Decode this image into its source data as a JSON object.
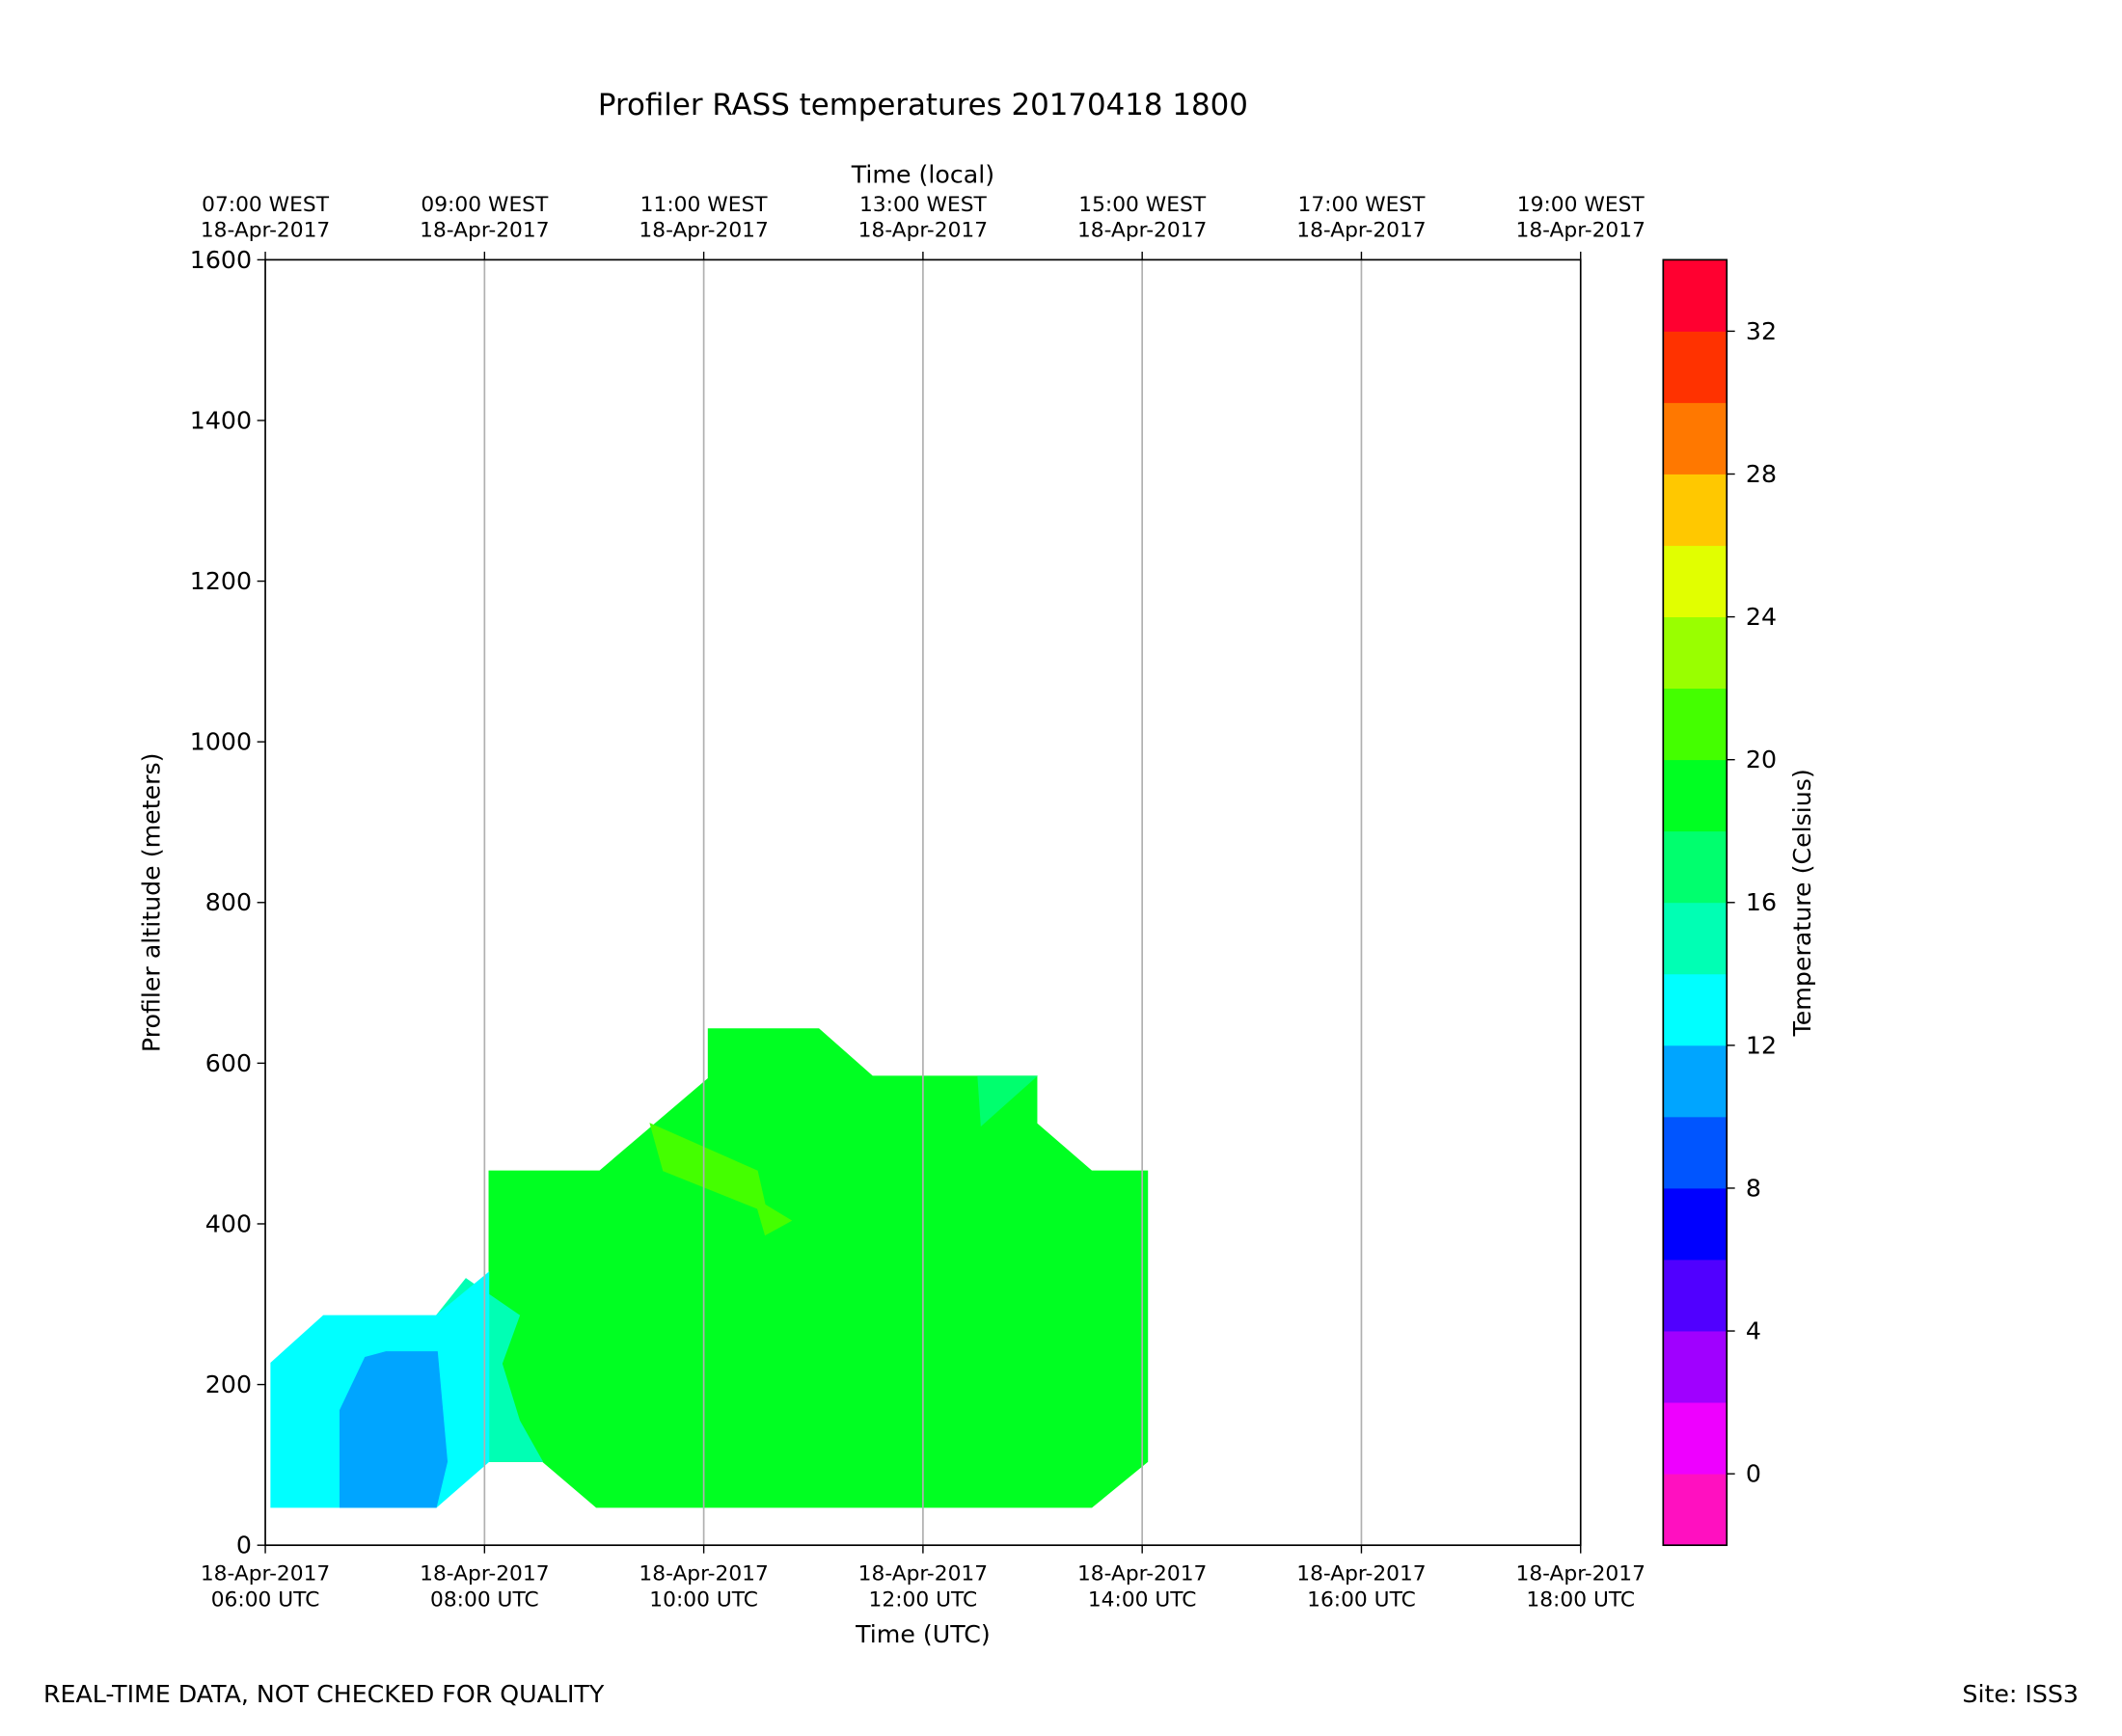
{
  "chart_data": {
    "type": "contourf",
    "title": "Profiler RASS temperatures 20170418 1800",
    "x_label": "Time (UTC)",
    "x2_label": "Time (local)",
    "y_label": "Profiler altitude (meters)",
    "colorbar_label": "Temperature (Celsius)",
    "footer_left": "REAL-TIME DATA, NOT CHECKED FOR QUALITY",
    "footer_right": "Site: ISS3",
    "xlim": [
      6,
      18
    ],
    "ylim": [
      0,
      1600
    ],
    "yticks": [
      0,
      200,
      400,
      600,
      800,
      1000,
      1200,
      1400,
      1600
    ],
    "xticks": [
      {
        "value": 6,
        "label": [
          "18-Apr-2017",
          "06:00 UTC"
        ]
      },
      {
        "value": 8,
        "label": [
          "18-Apr-2017",
          "08:00 UTC"
        ]
      },
      {
        "value": 10,
        "label": [
          "18-Apr-2017",
          "10:00 UTC"
        ]
      },
      {
        "value": 12,
        "label": [
          "18-Apr-2017",
          "12:00 UTC"
        ]
      },
      {
        "value": 14,
        "label": [
          "18-Apr-2017",
          "14:00 UTC"
        ]
      },
      {
        "value": 16,
        "label": [
          "18-Apr-2017",
          "16:00 UTC"
        ]
      },
      {
        "value": 18,
        "label": [
          "18-Apr-2017",
          "18:00 UTC"
        ]
      }
    ],
    "x2ticks": [
      {
        "value": 6,
        "label": [
          "07:00 WEST",
          "18-Apr-2017"
        ]
      },
      {
        "value": 8,
        "label": [
          "09:00 WEST",
          "18-Apr-2017"
        ]
      },
      {
        "value": 10,
        "label": [
          "11:00 WEST",
          "18-Apr-2017"
        ]
      },
      {
        "value": 12,
        "label": [
          "13:00 WEST",
          "18-Apr-2017"
        ]
      },
      {
        "value": 14,
        "label": [
          "15:00 WEST",
          "18-Apr-2017"
        ]
      },
      {
        "value": 16,
        "label": [
          "17:00 WEST",
          "18-Apr-2017"
        ]
      },
      {
        "value": 18,
        "label": [
          "19:00 WEST",
          "18-Apr-2017"
        ]
      }
    ],
    "grid": "x",
    "levels": [
      -2,
      0,
      2,
      4,
      6,
      8,
      10,
      12,
      14,
      16,
      18,
      20,
      22,
      24,
      26,
      28,
      30,
      32,
      34
    ],
    "colors": [
      "#ff10c0",
      "#ee00ff",
      "#a000ff",
      "#5000ff",
      "#0000ff",
      "#0055ff",
      "#00a5ff",
      "#00ffff",
      "#00ffb4",
      "#00ff6e",
      "#00ff22",
      "#44ff00",
      "#99ff00",
      "#e1ff00",
      "#ffc800",
      "#ff7800",
      "#ff3200",
      "#ff0030"
    ],
    "colorbar_ticks": [
      0,
      4,
      8,
      12,
      16,
      20,
      24,
      28,
      32
    ],
    "regions": [
      {
        "level": 18,
        "x": [
          8.04,
          9.05,
          10.04,
          10.04,
          11.05,
          11.54,
          13.04,
          13.04,
          13.54,
          14.05,
          14.05,
          13.54,
          9.02,
          8.53,
          8.04
        ],
        "y": [
          466,
          466,
          581,
          643,
          643,
          584,
          584,
          525,
          466,
          466,
          104,
          47,
          47,
          104,
          104
        ]
      },
      {
        "level": 14,
        "x": [
          7.56,
          7.83,
          8.32,
          8.16,
          8.32,
          8.53,
          8.04,
          7.9,
          7.75,
          7.7
        ],
        "y": [
          286,
          332,
          286,
          226,
          155,
          104,
          104,
          115,
          170,
          260
        ]
      },
      {
        "level": 12,
        "x": [
          6.05,
          6.53,
          7.56,
          8.04,
          8.04,
          7.56,
          6.05
        ],
        "y": [
          227,
          286,
          286,
          340,
          104,
          47,
          47
        ]
      },
      {
        "level": 10,
        "x": [
          6.68,
          6.68,
          6.91,
          7.1,
          7.57,
          7.66,
          7.56
        ],
        "y": [
          47,
          168,
          234,
          241,
          241,
          104,
          47
        ]
      },
      {
        "level": 16,
        "x": [
          12.5,
          13.04,
          12.53
        ],
        "y": [
          584,
          584,
          522
        ]
      },
      {
        "level": 20,
        "x": [
          9.51,
          10.49,
          10.56,
          10.8,
          10.56,
          10.49,
          9.63
        ],
        "y": [
          525,
          466,
          424,
          404,
          386,
          419,
          466
        ]
      }
    ]
  }
}
